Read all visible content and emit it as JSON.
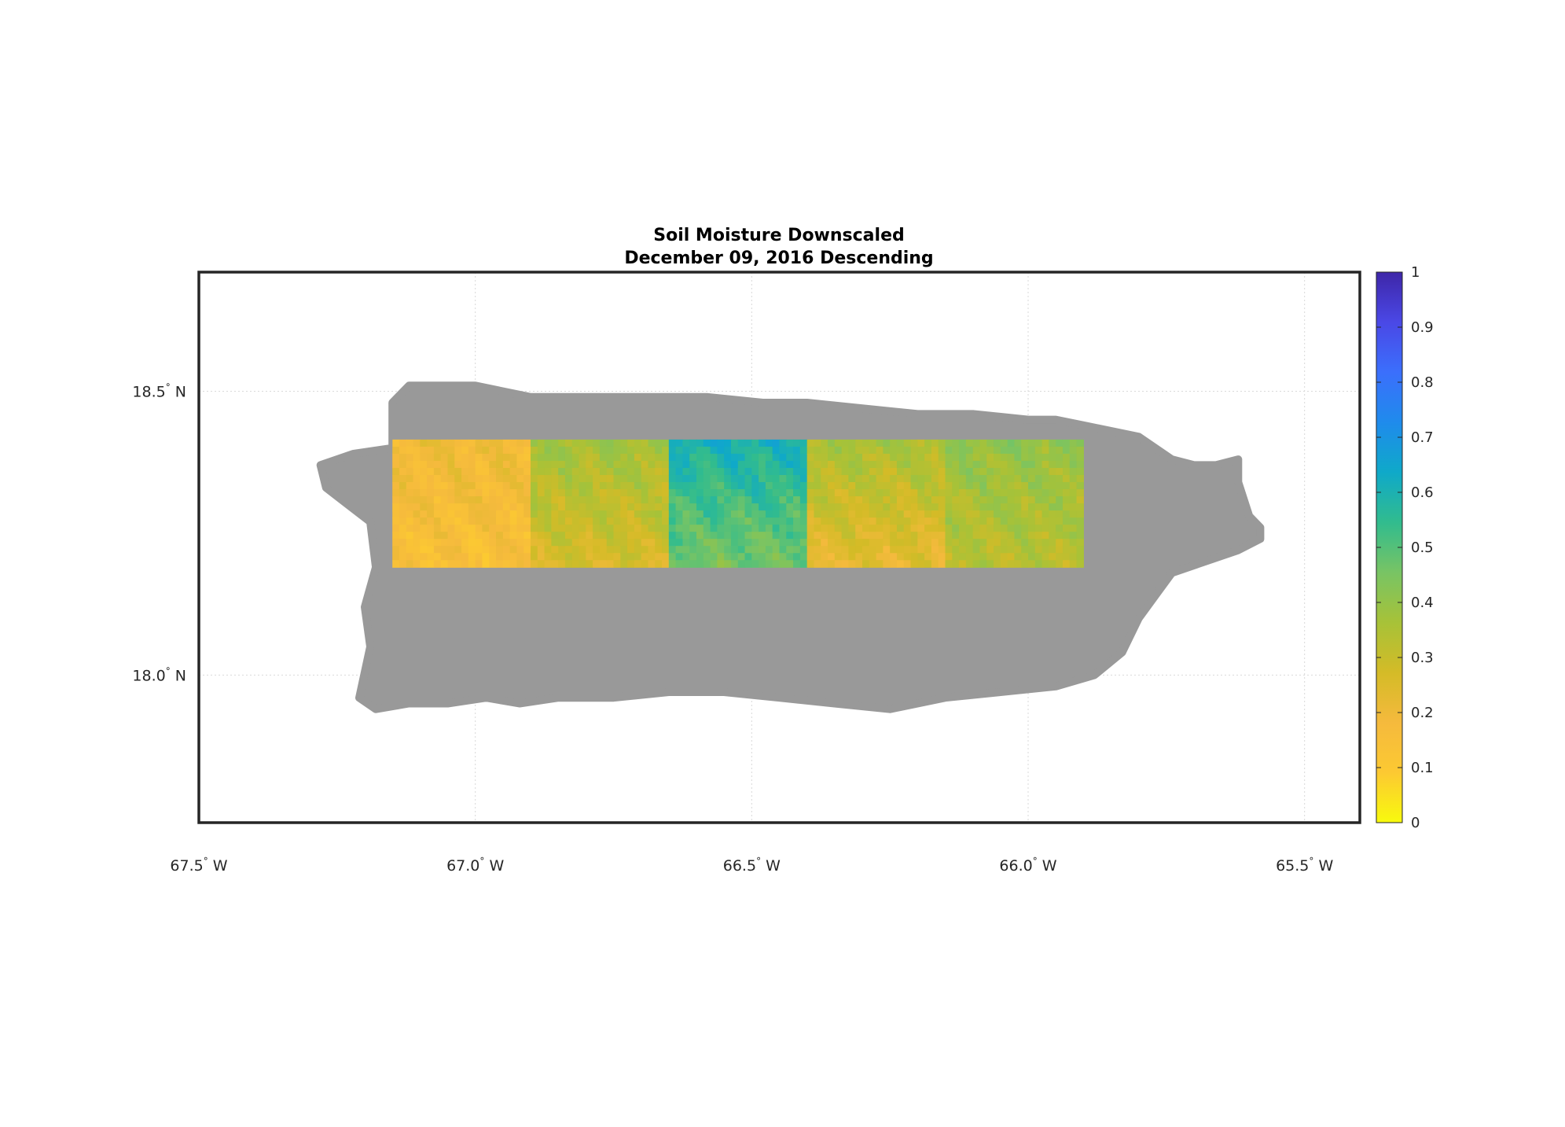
{
  "title": {
    "line1": "Soil Moisture Downscaled",
    "line2": "December 09, 2016 Descending"
  },
  "map": {
    "lon_range": [
      -67.5,
      -65.4
    ],
    "lat_range": [
      17.74,
      18.71
    ],
    "lon_ticks": [
      {
        "value": -67.5,
        "num": "67.5",
        "deg": "°",
        "hemi": " W"
      },
      {
        "value": -67.0,
        "num": "67.0",
        "deg": "°",
        "hemi": " W"
      },
      {
        "value": -66.5,
        "num": "66.5",
        "deg": "°",
        "hemi": " W"
      },
      {
        "value": -66.0,
        "num": "66.0",
        "deg": "°",
        "hemi": " W"
      },
      {
        "value": -65.5,
        "num": "65.5",
        "deg": "°",
        "hemi": " W"
      }
    ],
    "lat_ticks": [
      {
        "value": 18.5,
        "num": "18.5",
        "deg": "°",
        "hemi": " N"
      },
      {
        "value": 18.0,
        "num": "18.0",
        "deg": "°",
        "hemi": " N"
      }
    ],
    "grid": true,
    "land_color": "#999999",
    "land_polygon": [
      [
        -67.28,
        18.37
      ],
      [
        -67.22,
        18.39
      ],
      [
        -67.15,
        18.4
      ],
      [
        -67.15,
        18.48
      ],
      [
        -67.12,
        18.51
      ],
      [
        -67.0,
        18.51
      ],
      [
        -66.9,
        18.49
      ],
      [
        -66.8,
        18.49
      ],
      [
        -66.7,
        18.49
      ],
      [
        -66.58,
        18.49
      ],
      [
        -66.48,
        18.48
      ],
      [
        -66.4,
        18.48
      ],
      [
        -66.3,
        18.47
      ],
      [
        -66.2,
        18.46
      ],
      [
        -66.15,
        18.46
      ],
      [
        -66.1,
        18.46
      ],
      [
        -66.0,
        18.45
      ],
      [
        -65.95,
        18.45
      ],
      [
        -65.9,
        18.44
      ],
      [
        -65.8,
        18.42
      ],
      [
        -65.74,
        18.38
      ],
      [
        -65.7,
        18.37
      ],
      [
        -65.66,
        18.37
      ],
      [
        -65.62,
        18.38
      ],
      [
        -65.62,
        18.34
      ],
      [
        -65.6,
        18.28
      ],
      [
        -65.58,
        18.26
      ],
      [
        -65.58,
        18.24
      ],
      [
        -65.62,
        18.22
      ],
      [
        -65.68,
        18.2
      ],
      [
        -65.74,
        18.18
      ],
      [
        -65.77,
        18.14
      ],
      [
        -65.8,
        18.1
      ],
      [
        -65.83,
        18.04
      ],
      [
        -65.88,
        18.0
      ],
      [
        -65.95,
        17.98
      ],
      [
        -66.05,
        17.97
      ],
      [
        -66.15,
        17.96
      ],
      [
        -66.25,
        17.94
      ],
      [
        -66.35,
        17.95
      ],
      [
        -66.45,
        17.96
      ],
      [
        -66.55,
        17.97
      ],
      [
        -66.65,
        17.97
      ],
      [
        -66.75,
        17.96
      ],
      [
        -66.85,
        17.96
      ],
      [
        -66.92,
        17.95
      ],
      [
        -66.98,
        17.96
      ],
      [
        -67.05,
        17.95
      ],
      [
        -67.12,
        17.95
      ],
      [
        -67.18,
        17.94
      ],
      [
        -67.21,
        17.96
      ],
      [
        -67.19,
        18.05
      ],
      [
        -67.2,
        18.12
      ],
      [
        -67.18,
        18.19
      ],
      [
        -67.19,
        18.27
      ],
      [
        -67.23,
        18.3
      ],
      [
        -67.27,
        18.33
      ]
    ],
    "mosaic": {
      "lon_range": [
        -67.15,
        -65.9
      ],
      "lat_range": [
        18.195,
        18.415
      ],
      "tile_dlon": 0.25
    }
  },
  "chart_data": {
    "type": "heatmap",
    "title": "Soil Moisture Downscaled",
    "subtitle": "December 09, 2016 Descending",
    "xlim": [
      -67.5,
      -65.4
    ],
    "ylim": [
      17.74,
      18.71
    ],
    "colorbar": {
      "range": [
        0,
        1
      ],
      "ticks": [
        "0",
        "0.1",
        "0.2",
        "0.3",
        "0.4",
        "0.5",
        "0.6",
        "0.7",
        "0.8",
        "0.9",
        "1"
      ],
      "colors": [
        "#f8fa0d",
        "#fcc932",
        "#f5ba3d",
        "#d4bb27",
        "#a7c238",
        "#78c464",
        "#31bc8e",
        "#0fa9c9",
        "#1f8bec",
        "#3b6ffc",
        "#4a48e6",
        "#3e26a8"
      ]
    },
    "tiles": [
      {
        "lon": [
          -67.15,
          -66.9
        ],
        "base": 0.17,
        "north_adj": 0.02,
        "south_adj": -0.02
      },
      {
        "lon": [
          -66.9,
          -66.65
        ],
        "base": 0.32,
        "north_adj": 0.05,
        "south_adj": -0.06
      },
      {
        "lon": [
          -66.65,
          -66.4
        ],
        "base": 0.52,
        "north_adj": 0.08,
        "south_adj": -0.07
      },
      {
        "lon": [
          -66.4,
          -66.15
        ],
        "base": 0.3,
        "north_adj": 0.06,
        "south_adj": -0.08
      },
      {
        "lon": [
          -66.15,
          -65.9
        ],
        "base": 0.36,
        "north_adj": 0.04,
        "south_adj": -0.04
      }
    ]
  }
}
